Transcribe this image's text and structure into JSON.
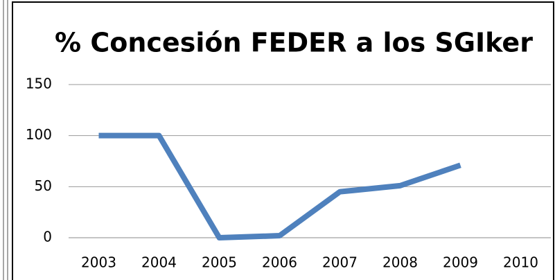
{
  "chart_data": {
    "type": "line",
    "title": "% Concesión FEDER a los SGIker",
    "categories": [
      "2003",
      "2004",
      "2005",
      "2006",
      "2007",
      "2008",
      "2009",
      "2010"
    ],
    "series": [
      {
        "name": "% Concesión FEDER",
        "color": "#4f81bd",
        "values": [
          100,
          100,
          0,
          2,
          45,
          51,
          71,
          null
        ]
      }
    ],
    "ylim": [
      0,
      150
    ],
    "yticks": [
      0,
      50,
      100,
      150
    ],
    "grid": true
  }
}
